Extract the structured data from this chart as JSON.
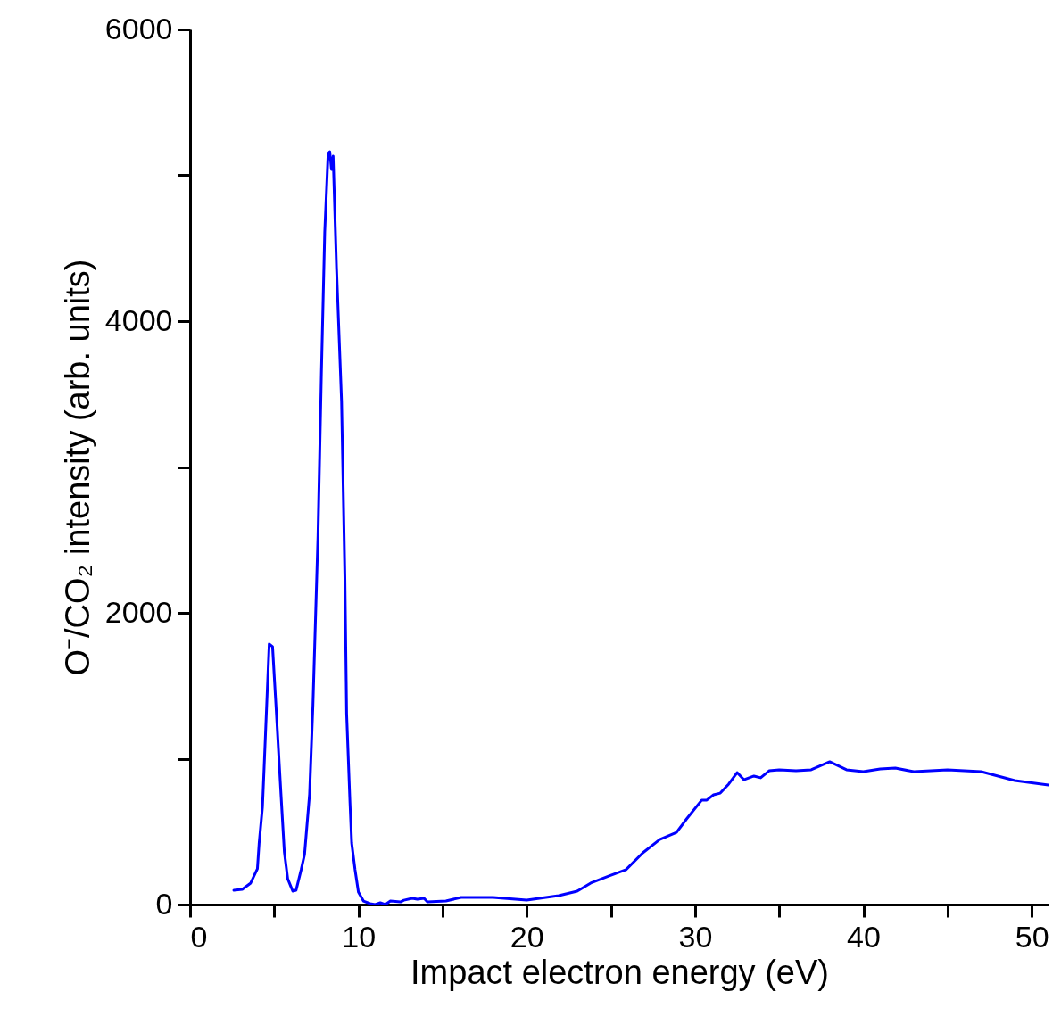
{
  "chart_data": {
    "type": "line",
    "xlabel": "Impact electron energy (eV)",
    "ylabel": "O⁻/CO₂ intensity (arb. units)",
    "xlim": [
      0,
      51
    ],
    "ylim": [
      0,
      6000
    ],
    "xticks": [
      0,
      {
        "value": 5,
        "label": null
      },
      10,
      {
        "value": 15,
        "label": null
      },
      20,
      {
        "value": 25,
        "label": null
      },
      30,
      {
        "value": 35,
        "label": null
      },
      40,
      {
        "value": 45,
        "label": null
      },
      50
    ],
    "yticks": [
      0,
      {
        "value": 1000,
        "label": null
      },
      2000,
      {
        "value": 3000,
        "label": null
      },
      4000,
      {
        "value": 5000,
        "label": null
      },
      6000
    ],
    "grid": false,
    "legend": false,
    "marker": "none",
    "line_style": "solid",
    "series": [
      {
        "color": "#0000ff",
        "x": [
          2.6,
          3.1,
          3.6,
          4.0,
          4.1,
          4.3,
          4.4,
          4.7,
          4.9,
          5.1,
          5.4,
          5.6,
          5.8,
          6.1,
          6.3,
          6.6,
          6.8,
          7.1,
          7.3,
          7.6,
          7.8,
          8.0,
          8.2,
          8.3,
          8.4,
          8.5,
          8.7,
          9.0,
          9.2,
          9.3,
          9.5,
          9.6,
          9.8,
          10.0,
          10.3,
          10.7,
          11.0,
          11.3,
          11.6,
          11.9,
          12.5,
          12.7,
          13.2,
          13.5,
          13.9,
          14.1,
          15.2,
          16.1,
          18.0,
          20.0,
          21.9,
          23.0,
          23.8,
          24.9,
          25.9,
          26.9,
          27.9,
          28.9,
          29.5,
          30.4,
          30.7,
          31.1,
          31.5,
          32.0,
          32.5,
          32.9,
          33.5,
          33.9,
          34.4,
          35.0,
          36.0,
          36.9,
          38.0,
          39.0,
          40.0,
          41.0,
          41.9,
          43.0,
          45.0,
          47.0,
          49.0,
          51.0
        ],
        "values": [
          98,
          104,
          147,
          245,
          416,
          667,
          942,
          1786,
          1768,
          1370,
          758,
          361,
          177,
          92,
          98,
          239,
          343,
          758,
          1370,
          2532,
          3633,
          4612,
          5150,
          5162,
          5040,
          5131,
          4367,
          3450,
          2226,
          1309,
          697,
          422,
          239,
          86,
          24,
          6,
          0,
          12,
          0,
          24,
          18,
          30,
          43,
          37,
          43,
          18,
          24,
          49,
          49,
          31,
          61,
          92,
          147,
          196,
          239,
          355,
          446,
          495,
          587,
          716,
          716,
          752,
          764,
          826,
          905,
          856,
          881,
          869,
          917,
          924,
          917,
          924,
          979,
          924,
          911,
          930,
          936,
          911,
          924,
          911,
          850,
          820
        ]
      }
    ]
  }
}
